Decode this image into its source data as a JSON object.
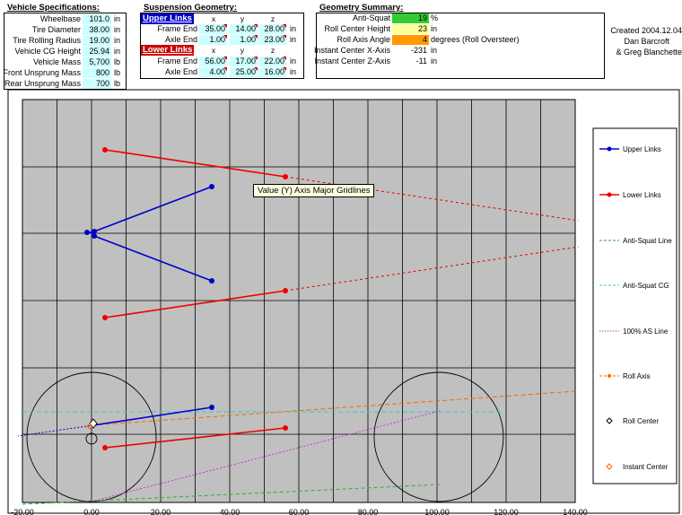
{
  "vehicle": {
    "title": "Vehicle Specifications:",
    "rows": [
      {
        "label": "Wheelbase",
        "value": "101.0",
        "unit": "in"
      },
      {
        "label": "Tire Diameter",
        "value": "38.00",
        "unit": "in"
      },
      {
        "label": "Tire Rolling Radius",
        "value": "19.00",
        "unit": "in"
      },
      {
        "label": "Vehicle CG Height",
        "value": "25.94",
        "unit": "in"
      },
      {
        "label": "Vehicle Mass",
        "value": "5,700",
        "unit": "lb"
      },
      {
        "label": "Front Unsprung Mass",
        "value": "800",
        "unit": "lb"
      },
      {
        "label": "Rear Unsprung Mass",
        "value": "700",
        "unit": "lb"
      }
    ]
  },
  "suspension": {
    "title": "Suspension Geometry:",
    "upper_label": "Upper Links",
    "lower_label": "Lower Links",
    "cols": [
      "x",
      "y",
      "z"
    ],
    "upper_rows": [
      {
        "label": "Frame End",
        "x": "35.00",
        "y": "14.00",
        "z": "28.00",
        "unit": "in"
      },
      {
        "label": "Axle End",
        "x": "1.00",
        "y": "1.00",
        "z": "23.00",
        "unit": "in"
      }
    ],
    "lower_rows": [
      {
        "label": "Frame End",
        "x": "56.00",
        "y": "17.00",
        "z": "22.00",
        "unit": "in"
      },
      {
        "label": "Axle End",
        "x": "4.00",
        "y": "25.00",
        "z": "16.00",
        "unit": "in"
      }
    ]
  },
  "summary": {
    "title": "Geometry Summary:",
    "rows": [
      {
        "label": "Anti-Squat",
        "value": "19",
        "unit": "%",
        "color": "#33cc33"
      },
      {
        "label": "Roll Center Height",
        "value": "23",
        "unit": "in",
        "color": "#ffff99"
      },
      {
        "label": "Roll Axis Angle",
        "value": "4",
        "unit": "degrees (Roll Oversteer)",
        "color": "#ff9900"
      },
      {
        "label": "Instant Center X-Axis",
        "value": "-231",
        "unit": "in",
        "color": "#ffffff"
      },
      {
        "label": "Instant Center Z-Axis",
        "value": "-11",
        "unit": "in",
        "color": "#ffffff"
      }
    ]
  },
  "credits": {
    "line1": "Created 2004.12.04",
    "line2": "Dan Barcroft",
    "line3": "& Greg Blanchette"
  },
  "tooltip": "Value (Y) Axis Major Gridlines",
  "colors": {
    "plot_bg": "#c0c0c0",
    "upper": "#0000cc",
    "lower": "#ee0000",
    "anti_squat_line": "#33aa33",
    "anti_squat_cg": "#33cccc",
    "as100": "#cc33cc",
    "roll_axis": "#ff6600"
  },
  "chart_data": {
    "type": "scatter",
    "xlim": [
      -20,
      140
    ],
    "x_ticks": [
      "-20.00",
      "0.00",
      "20.00",
      "40.00",
      "60.00",
      "80.00",
      "100.00",
      "120.00",
      "140.00"
    ],
    "grid": true,
    "legend_position": "right",
    "series": [
      {
        "name": "Upper Links",
        "color": "#0000cc",
        "style": "solid-diamond"
      },
      {
        "name": "Lower Links",
        "color": "#ee0000",
        "style": "solid-diamond"
      },
      {
        "name": "Anti-Squat Line",
        "color": "#33aa33",
        "style": "dashed"
      },
      {
        "name": "Anti-Squat CG",
        "color": "#33cccc",
        "style": "dashed"
      },
      {
        "name": "100% AS Line",
        "color": "#cc33cc",
        "style": "dotted"
      },
      {
        "name": "Roll Axis",
        "color": "#ff6600",
        "style": "dashed-marker"
      },
      {
        "name": "Roll Center",
        "color": "#000000",
        "style": "open-diamond"
      },
      {
        "name": "Instant Center",
        "color": "#ff6600",
        "style": "open-diamond"
      }
    ]
  }
}
